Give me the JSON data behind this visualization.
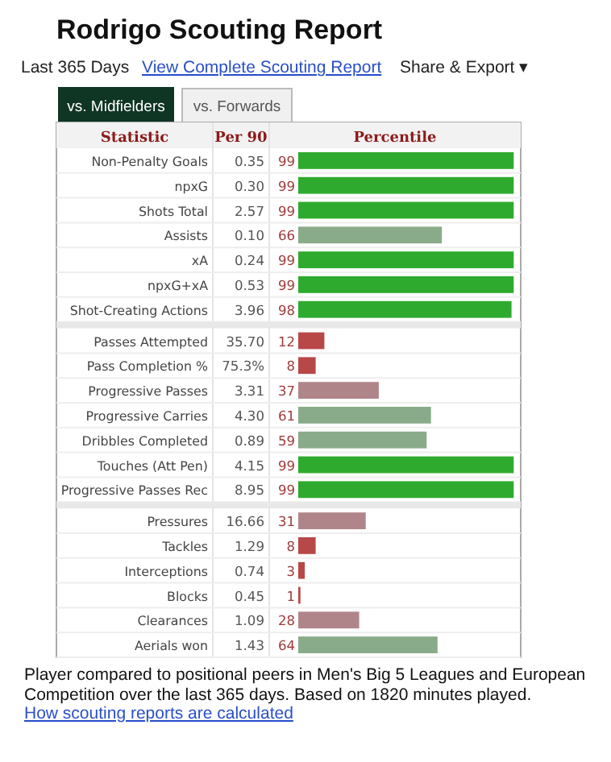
{
  "chart_data": {
    "type": "bar",
    "orientation": "horizontal",
    "title": "Rodrigo Scouting Report",
    "ylabel": "Statistic",
    "xlabel": "Percentile",
    "categories": [
      "Non-Penalty Goals",
      "npxG",
      "Shots Total",
      "Assists",
      "xA",
      "npxG+xA",
      "Shot-Creating Actions",
      null,
      "Passes Attempted",
      "Pass Completion %",
      "Progressive Passes",
      "Progressive Carries",
      "Dribbles Completed",
      "Touches (Att Pen)",
      "Progressive Passes Rec",
      null,
      "Pressures",
      "Tackles",
      "Interceptions",
      "Blocks",
      "Clearances",
      "Aerials won"
    ],
    "values": [
      99,
      99,
      99,
      66,
      99,
      99,
      98,
      null,
      12,
      8,
      37,
      61,
      59,
      99,
      99,
      null,
      31,
      8,
      3,
      1,
      28,
      64
    ],
    "colors": [
      "#2eab2e",
      "#2eab2e",
      "#2eab2e",
      "#8aab8a",
      "#2eab2e",
      "#2eab2e",
      "#2eab2e",
      null,
      "#b84848",
      "#b84848",
      "#b0858a",
      "#8aab8a",
      "#8aab8a",
      "#2eab2e",
      "#2eab2e",
      null,
      "#b0858a",
      "#b84848",
      "#b84848",
      "#b84848",
      "#b0858a",
      "#8aab8a"
    ],
    "xlim": [
      0,
      100
    ],
    "tick_labels": "y",
    "data_labels": true,
    "annotations": [
      "Last 365 Days",
      "View Complete Scouting Report",
      "Share & Export ▾",
      "vs. Midfielders",
      "vs. Forwards",
      "Per 90",
      "Player compared to positional peers in Men's Big 5 Leagues and European Competition over the last 365 days. Based on 1820 minutes played.",
      "How scouting reports are calculated",
      "0.35",
      "0.30",
      "2.57",
      "0.10",
      "0.24",
      "0.53",
      "3.96",
      "35.70",
      "75.3%",
      "3.31",
      "4.30",
      "0.89",
      "4.15",
      "8.95",
      "16.66",
      "1.29",
      "0.74",
      "0.45",
      "1.09",
      "1.43"
    ]
  }
}
